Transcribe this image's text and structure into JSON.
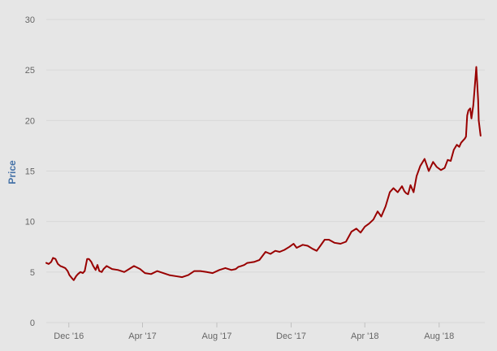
{
  "chart_data": {
    "type": "line",
    "ylabel": "Price",
    "xlabel": "",
    "ylim": [
      0,
      30
    ],
    "y_ticks": [
      0,
      5,
      10,
      15,
      20,
      25,
      30
    ],
    "x_ticks": [
      {
        "label": "Dec '16",
        "date": "2016-12-01"
      },
      {
        "label": "Apr '17",
        "date": "2017-04-01"
      },
      {
        "label": "Aug '17",
        "date": "2017-08-01"
      },
      {
        "label": "Dec '17",
        "date": "2017-12-01"
      },
      {
        "label": "Apr '18",
        "date": "2018-04-01"
      },
      {
        "label": "Aug '18",
        "date": "2018-08-01"
      }
    ],
    "xlim": [
      "2016-10-25",
      "2018-10-15"
    ],
    "grid": true,
    "legend": "none",
    "colors": {
      "line": "#990000",
      "grid": "#d8d8d8",
      "background": "#e6e6e6",
      "axis_title": "#4572a7",
      "tick_text": "#666666"
    },
    "series": [
      {
        "x": [
          "2016-10-25",
          "2016-10-29",
          "2016-11-02",
          "2016-11-05",
          "2016-11-09",
          "2016-11-13",
          "2016-11-17",
          "2016-11-21",
          "2016-11-25",
          "2016-11-29",
          "2016-12-02",
          "2016-12-06",
          "2016-12-09",
          "2016-12-13",
          "2016-12-16",
          "2016-12-20",
          "2016-12-24",
          "2016-12-27",
          "2016-12-31",
          "2017-01-03",
          "2017-01-07",
          "2017-01-10",
          "2017-01-14",
          "2017-01-17",
          "2017-01-20",
          "2017-01-24",
          "2017-01-27",
          "2017-02-01",
          "2017-02-10",
          "2017-02-20",
          "2017-03-02",
          "2017-03-10",
          "2017-03-18",
          "2017-03-28",
          "2017-04-05",
          "2017-04-15",
          "2017-04-25",
          "2017-05-05",
          "2017-05-15",
          "2017-05-25",
          "2017-06-05",
          "2017-06-10",
          "2017-06-15",
          "2017-06-25",
          "2017-07-05",
          "2017-07-15",
          "2017-07-25",
          "2017-08-05",
          "2017-08-15",
          "2017-08-25",
          "2017-09-01",
          "2017-09-05",
          "2017-09-10",
          "2017-09-15",
          "2017-09-20",
          "2017-10-01",
          "2017-10-10",
          "2017-10-20",
          "2017-10-28",
          "2017-11-05",
          "2017-11-12",
          "2017-11-20",
          "2017-11-28",
          "2017-12-05",
          "2017-12-10",
          "2017-12-20",
          "2017-12-28",
          "2018-01-05",
          "2018-01-12",
          "2018-01-18",
          "2018-01-25",
          "2018-02-01",
          "2018-02-10",
          "2018-02-20",
          "2018-03-01",
          "2018-03-10",
          "2018-03-18",
          "2018-03-25",
          "2018-04-01",
          "2018-04-08",
          "2018-04-15",
          "2018-04-22",
          "2018-04-28",
          "2018-05-05",
          "2018-05-12",
          "2018-05-18",
          "2018-05-25",
          "2018-06-01",
          "2018-06-05",
          "2018-06-08",
          "2018-06-11",
          "2018-06-15",
          "2018-06-20",
          "2018-06-25",
          "2018-07-01",
          "2018-07-08",
          "2018-07-15",
          "2018-07-22",
          "2018-07-28",
          "2018-08-04",
          "2018-08-10",
          "2018-08-15",
          "2018-08-20",
          "2018-08-25",
          "2018-08-30",
          "2018-09-03",
          "2018-09-06",
          "2018-09-09",
          "2018-09-12",
          "2018-09-14",
          "2018-09-16",
          "2018-09-18",
          "2018-09-21",
          "2018-09-23",
          "2018-09-26",
          "2018-09-28",
          "2018-10-01",
          "2018-10-04",
          "2018-10-05",
          "2018-10-08"
        ],
        "y": [
          5.9,
          5.8,
          6.0,
          6.4,
          6.3,
          5.8,
          5.6,
          5.5,
          5.4,
          5.1,
          4.7,
          4.4,
          4.2,
          4.6,
          4.8,
          5.0,
          4.9,
          5.1,
          6.3,
          6.3,
          6.0,
          5.6,
          5.2,
          5.7,
          5.1,
          5.0,
          5.3,
          5.6,
          5.3,
          5.2,
          5.0,
          5.3,
          5.6,
          5.3,
          4.9,
          4.8,
          5.1,
          4.9,
          4.7,
          4.6,
          4.5,
          4.6,
          4.7,
          5.1,
          5.1,
          5.0,
          4.9,
          5.2,
          5.4,
          5.2,
          5.3,
          5.5,
          5.6,
          5.7,
          5.9,
          6.0,
          6.2,
          7.0,
          6.8,
          7.1,
          7.0,
          7.2,
          7.5,
          7.8,
          7.4,
          7.7,
          7.6,
          7.3,
          7.1,
          7.6,
          8.2,
          8.2,
          7.9,
          7.8,
          8.0,
          9.0,
          9.3,
          8.9,
          9.5,
          9.8,
          10.2,
          11.0,
          10.5,
          11.5,
          12.9,
          13.3,
          12.9,
          13.5,
          13.0,
          12.8,
          12.7,
          13.6,
          12.9,
          14.5,
          15.5,
          16.2,
          15.0,
          15.9,
          15.4,
          15.1,
          15.3,
          16.1,
          16.0,
          17.1,
          17.6,
          17.4,
          17.8,
          18.0,
          18.2,
          18.4,
          20.5,
          21.0,
          21.2,
          20.2,
          21.5,
          23.0,
          25.3,
          22.0,
          20.0,
          18.5
        ]
      }
    ]
  }
}
